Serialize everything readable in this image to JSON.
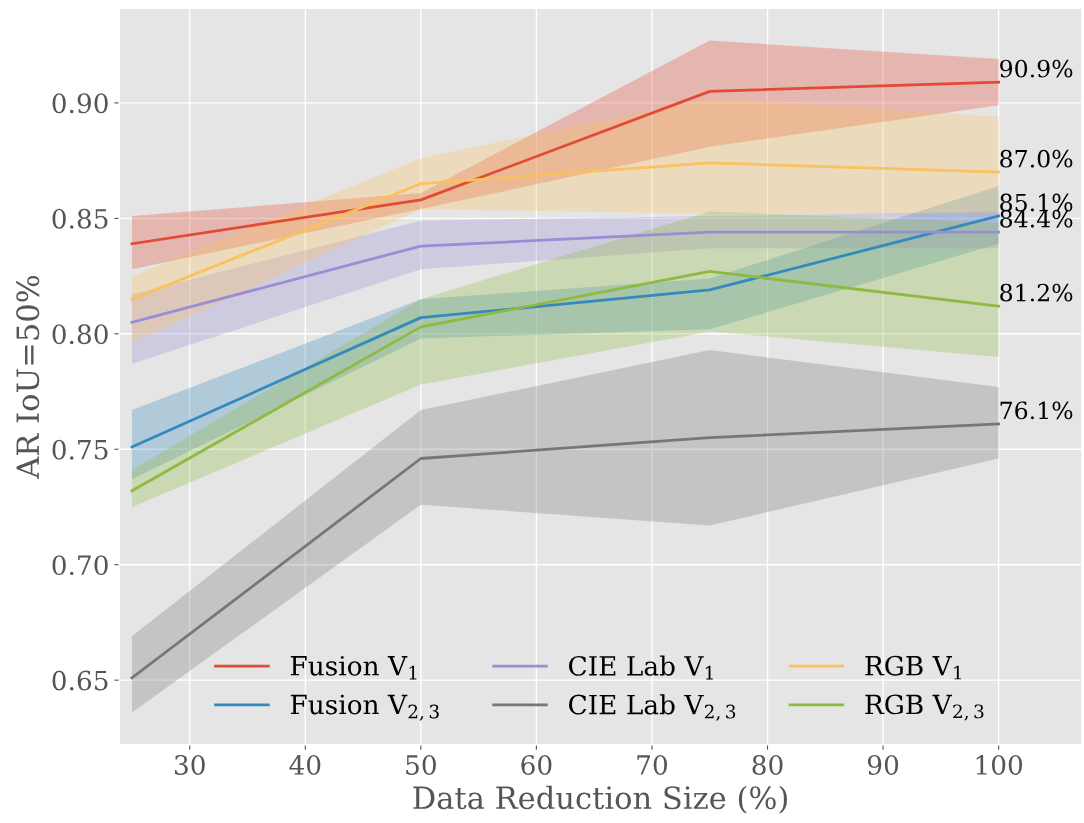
{
  "chart_data": {
    "type": "line",
    "xlabel": "Data Reduction Size (%)",
    "ylabel": "AR IoU=50%",
    "x": [
      25,
      50,
      75,
      100
    ],
    "series": [
      {
        "name": "Fusion V$_{1}$",
        "color": "#e24a33",
        "values": [
          0.839,
          0.858,
          0.905,
          0.909
        ],
        "lower": [
          0.828,
          0.854,
          0.881,
          0.899
        ],
        "upper": [
          0.851,
          0.861,
          0.927,
          0.919
        ],
        "value_labels": [
          null,
          null,
          null,
          "90.9%"
        ]
      },
      {
        "name": "Fusion V$_{2,3}$",
        "color": "#348abd",
        "values": [
          0.751,
          0.807,
          0.819,
          0.851
        ],
        "lower": [
          0.737,
          0.798,
          0.802,
          0.839
        ],
        "upper": [
          0.767,
          0.815,
          0.824,
          0.864
        ],
        "value_labels": [
          null,
          null,
          null,
          "85.1%"
        ]
      },
      {
        "name": "CIE Lab V$_{1}$",
        "color": "#988ed5",
        "values": [
          0.805,
          0.838,
          0.844,
          0.844
        ],
        "lower": [
          0.787,
          0.828,
          0.837,
          0.837
        ],
        "upper": [
          0.817,
          0.849,
          0.851,
          0.853
        ],
        "value_labels": [
          null,
          null,
          null,
          "84.4%"
        ]
      },
      {
        "name": "CIE Lab V$_{2,3}$",
        "color": "#777777",
        "values": [
          0.651,
          0.746,
          0.755,
          0.761
        ],
        "lower": [
          0.636,
          0.726,
          0.717,
          0.746
        ],
        "upper": [
          0.669,
          0.767,
          0.793,
          0.777
        ],
        "value_labels": [
          null,
          null,
          null,
          "76.1%"
        ]
      },
      {
        "name": "RGB V$_{1}$",
        "color": "#fbc15e",
        "values": [
          0.815,
          0.865,
          0.874,
          0.87
        ],
        "lower": [
          0.796,
          0.854,
          0.852,
          0.852
        ],
        "upper": [
          0.825,
          0.876,
          0.902,
          0.894
        ],
        "value_labels": [
          null,
          null,
          null,
          "87.0%"
        ]
      },
      {
        "name": "RGB V$_{2,3}$",
        "color": "#8eba42",
        "values": [
          0.732,
          0.803,
          0.827,
          0.812
        ],
        "lower": [
          0.725,
          0.778,
          0.801,
          0.79
        ],
        "upper": [
          0.741,
          0.815,
          0.853,
          0.848
        ],
        "value_labels": [
          null,
          null,
          null,
          "81.2%"
        ]
      }
    ],
    "xlim": [
      23.9,
      107.2
    ],
    "ylim": [
      0.622,
      0.941
    ],
    "xticks": [
      30,
      40,
      50,
      60,
      70,
      80,
      90,
      100
    ],
    "yticks": [
      0.65,
      {
        "value": 0.7,
        "label": "0.70"
      },
      0.75,
      {
        "value": 0.8,
        "label": "0.80"
      },
      0.85,
      {
        "value": 0.9,
        "label": "0.90"
      }
    ],
    "grid": true,
    "legend": "bottom",
    "marker": "none",
    "line_style": "solid"
  }
}
